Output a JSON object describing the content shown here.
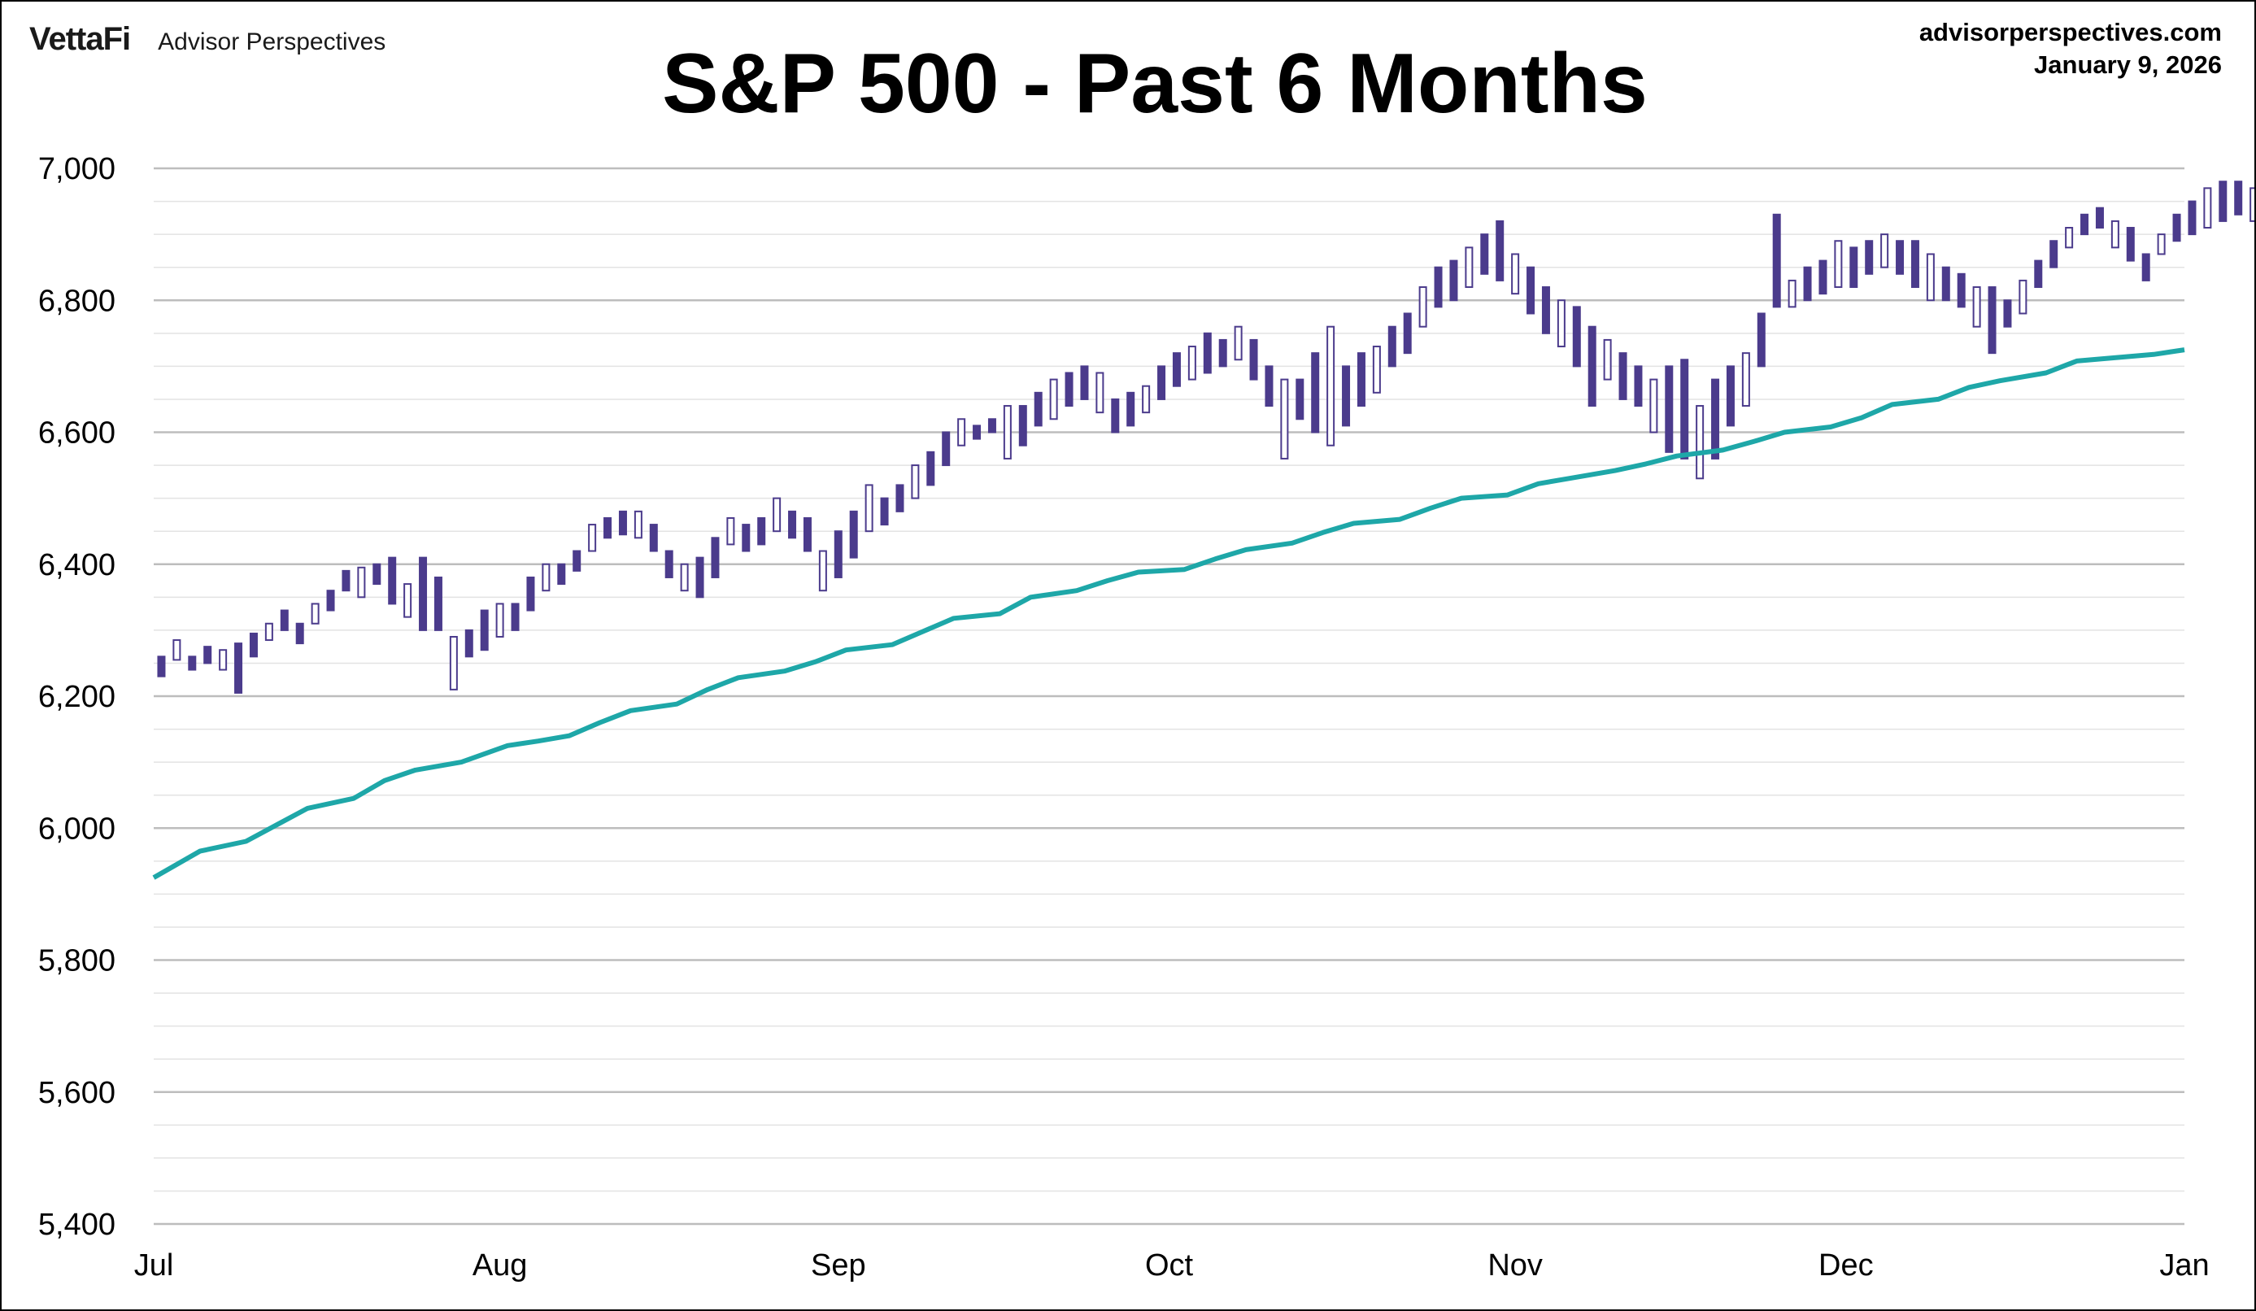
{
  "header": {
    "brand": "VettaFi",
    "brand_sub": "Advisor Perspectives",
    "site": "advisorperspectives.com",
    "date": "January 9, 2026",
    "title": "S&P 500 - Past 6 Months"
  },
  "chart_data": {
    "type": "candlestick",
    "title": "S&P 500 - Past 6 Months",
    "ylim": [
      5400,
      7000
    ],
    "yticks": [
      5400,
      5600,
      5800,
      6000,
      6200,
      6400,
      6600,
      6800,
      7000
    ],
    "ytick_labels": [
      "5,400",
      "5,600",
      "5,800",
      "6,000",
      "6,200",
      "6,400",
      "6,600",
      "6,800",
      "7,000"
    ],
    "xlim": [
      0,
      132
    ],
    "xticks": [
      {
        "label": "Jul",
        "index": 0
      },
      {
        "label": "Aug",
        "index": 22.5
      },
      {
        "label": "Sep",
        "index": 44.5
      },
      {
        "label": "Oct",
        "index": 66
      },
      {
        "label": "Nov",
        "index": 88.5
      },
      {
        "label": "Dec",
        "index": 110
      },
      {
        "label": "Jan",
        "index": 132
      }
    ],
    "grid": true,
    "colors": {
      "candle": "#4b3b8c",
      "moving_average": "#1ea7a8",
      "grid": "#cfcfcf"
    },
    "candles": [
      [
        6230,
        6260
      ],
      [
        6255,
        6285
      ],
      [
        6240,
        6260
      ],
      [
        6250,
        6275
      ],
      [
        6240,
        6270
      ],
      [
        6205,
        6280
      ],
      [
        6260,
        6295
      ],
      [
        6285,
        6310
      ],
      [
        6300,
        6330
      ],
      [
        6280,
        6310
      ],
      [
        6310,
        6340
      ],
      [
        6330,
        6360
      ],
      [
        6360,
        6390
      ],
      [
        6350,
        6395
      ],
      [
        6370,
        6400
      ],
      [
        6340,
        6410
      ],
      [
        6320,
        6370
      ],
      [
        6300,
        6410
      ],
      [
        6300,
        6380
      ],
      [
        6210,
        6290
      ],
      [
        6260,
        6300
      ],
      [
        6270,
        6330
      ],
      [
        6290,
        6340
      ],
      [
        6300,
        6340
      ],
      [
        6330,
        6380
      ],
      [
        6360,
        6400
      ],
      [
        6370,
        6400
      ],
      [
        6390,
        6420
      ],
      [
        6420,
        6460
      ],
      [
        6440,
        6470
      ],
      [
        6445,
        6480
      ],
      [
        6440,
        6480
      ],
      [
        6420,
        6460
      ],
      [
        6380,
        6420
      ],
      [
        6360,
        6400
      ],
      [
        6350,
        6410
      ],
      [
        6380,
        6440
      ],
      [
        6430,
        6470
      ],
      [
        6420,
        6460
      ],
      [
        6430,
        6470
      ],
      [
        6450,
        6500
      ],
      [
        6440,
        6480
      ],
      [
        6420,
        6470
      ],
      [
        6360,
        6420
      ],
      [
        6380,
        6450
      ],
      [
        6410,
        6480
      ],
      [
        6450,
        6520
      ],
      [
        6460,
        6500
      ],
      [
        6480,
        6520
      ],
      [
        6500,
        6550
      ],
      [
        6520,
        6570
      ],
      [
        6550,
        6600
      ],
      [
        6580,
        6620
      ],
      [
        6590,
        6610
      ],
      [
        6600,
        6620
      ],
      [
        6560,
        6640
      ],
      [
        6580,
        6640
      ],
      [
        6610,
        6660
      ],
      [
        6620,
        6680
      ],
      [
        6640,
        6690
      ],
      [
        6650,
        6700
      ],
      [
        6630,
        6690
      ],
      [
        6600,
        6650
      ],
      [
        6610,
        6660
      ],
      [
        6630,
        6670
      ],
      [
        6650,
        6700
      ],
      [
        6670,
        6720
      ],
      [
        6680,
        6730
      ],
      [
        6690,
        6750
      ],
      [
        6700,
        6740
      ],
      [
        6710,
        6760
      ],
      [
        6680,
        6740
      ],
      [
        6640,
        6700
      ],
      [
        6560,
        6680
      ],
      [
        6620,
        6680
      ],
      [
        6600,
        6720
      ],
      [
        6580,
        6760
      ],
      [
        6610,
        6700
      ],
      [
        6640,
        6720
      ],
      [
        6660,
        6730
      ],
      [
        6700,
        6760
      ],
      [
        6720,
        6780
      ],
      [
        6760,
        6820
      ],
      [
        6790,
        6850
      ],
      [
        6800,
        6860
      ],
      [
        6820,
        6880
      ],
      [
        6840,
        6900
      ],
      [
        6830,
        6920
      ],
      [
        6810,
        6870
      ],
      [
        6780,
        6850
      ],
      [
        6750,
        6820
      ],
      [
        6730,
        6800
      ],
      [
        6700,
        6790
      ],
      [
        6640,
        6760
      ],
      [
        6680,
        6740
      ],
      [
        6650,
        6720
      ],
      [
        6640,
        6700
      ],
      [
        6600,
        6680
      ],
      [
        6570,
        6700
      ],
      [
        6560,
        6710
      ],
      [
        6530,
        6640
      ],
      [
        6560,
        6680
      ],
      [
        6610,
        6700
      ],
      [
        6640,
        6720
      ],
      [
        6700,
        6780
      ],
      [
        6790,
        6930
      ],
      [
        6790,
        6830
      ],
      [
        6800,
        6850
      ],
      [
        6810,
        6860
      ],
      [
        6820,
        6890
      ],
      [
        6820,
        6880
      ],
      [
        6840,
        6890
      ],
      [
        6850,
        6900
      ],
      [
        6840,
        6890
      ],
      [
        6820,
        6890
      ],
      [
        6800,
        6870
      ],
      [
        6800,
        6850
      ],
      [
        6790,
        6840
      ],
      [
        6760,
        6820
      ],
      [
        6720,
        6820
      ],
      [
        6760,
        6800
      ],
      [
        6780,
        6830
      ],
      [
        6820,
        6860
      ],
      [
        6850,
        6890
      ],
      [
        6880,
        6910
      ],
      [
        6900,
        6930
      ],
      [
        6910,
        6940
      ],
      [
        6880,
        6920
      ],
      [
        6860,
        6910
      ],
      [
        6830,
        6870
      ],
      [
        6870,
        6900
      ],
      [
        6890,
        6930
      ],
      [
        6900,
        6950
      ],
      [
        6910,
        6970
      ],
      [
        6920,
        6980
      ],
      [
        6930,
        6980
      ],
      [
        6920,
        6970
      ]
    ],
    "moving_average": [
      [
        0,
        5925
      ],
      [
        3,
        5965
      ],
      [
        6,
        5980
      ],
      [
        8,
        6005
      ],
      [
        10,
        6030
      ],
      [
        13,
        6045
      ],
      [
        15,
        6072
      ],
      [
        17,
        6088
      ],
      [
        20,
        6100
      ],
      [
        23,
        6125
      ],
      [
        25,
        6132
      ],
      [
        27,
        6140
      ],
      [
        29,
        6160
      ],
      [
        31,
        6178
      ],
      [
        34,
        6188
      ],
      [
        36,
        6210
      ],
      [
        38,
        6228
      ],
      [
        41,
        6238
      ],
      [
        43,
        6252
      ],
      [
        45,
        6270
      ],
      [
        48,
        6278
      ],
      [
        50,
        6298
      ],
      [
        52,
        6318
      ],
      [
        55,
        6325
      ],
      [
        57,
        6350
      ],
      [
        60,
        6360
      ],
      [
        62,
        6375
      ],
      [
        64,
        6388
      ],
      [
        67,
        6392
      ],
      [
        69,
        6408
      ],
      [
        71,
        6422
      ],
      [
        74,
        6432
      ],
      [
        76,
        6448
      ],
      [
        78,
        6462
      ],
      [
        81,
        6468
      ],
      [
        83,
        6485
      ],
      [
        85,
        6500
      ],
      [
        88,
        6505
      ],
      [
        90,
        6522
      ],
      [
        92,
        6530
      ],
      [
        95,
        6542
      ],
      [
        97,
        6552
      ],
      [
        99,
        6564
      ],
      [
        102,
        6573
      ],
      [
        104,
        6586
      ],
      [
        106,
        6600
      ],
      [
        109,
        6608
      ],
      [
        111,
        6622
      ],
      [
        113,
        6642
      ],
      [
        116,
        6650
      ],
      [
        118,
        6668
      ],
      [
        120,
        6678
      ],
      [
        123,
        6690
      ],
      [
        125,
        6708
      ],
      [
        127,
        6712
      ],
      [
        130,
        6718
      ],
      [
        132,
        6725
      ]
    ]
  }
}
